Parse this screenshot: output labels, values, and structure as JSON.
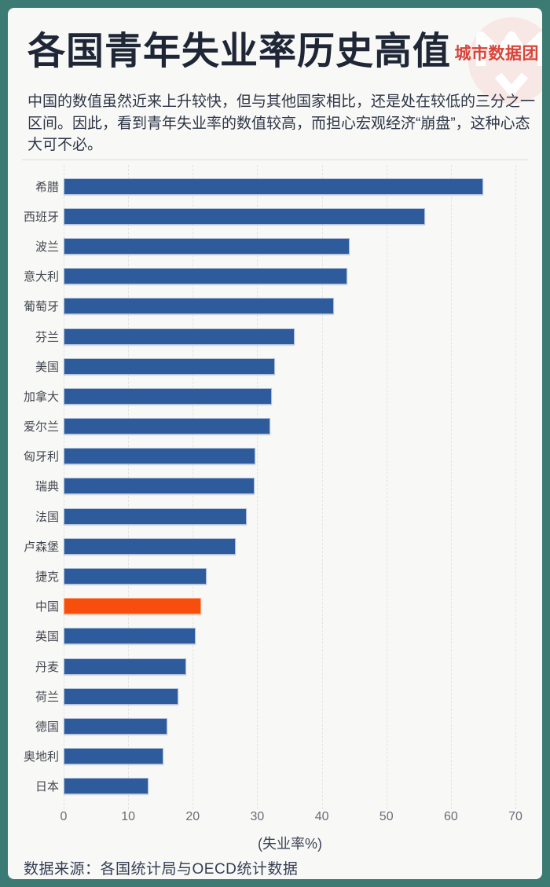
{
  "colors": {
    "frame_teal": "#3b7b73",
    "panel_bg": "#f8f8f6",
    "bar_blue": "#2d5b9b",
    "bar_orange": "#f84e0d",
    "logo_red": "#d8443a",
    "logo_pink": "#f7e8e6"
  },
  "header": {
    "title": "各国青年失业率历史高值",
    "logo_text": "城市数据团"
  },
  "intro": {
    "lines": [
      "中国的数值虽然近来上升较快，但与其他国家相比，还是处在较低的三分之一",
      "区间。因此，看到青年失业率的数值较高，而担心宏观经济“崩盘”，这种心态",
      "大可不必。"
    ]
  },
  "chart_data": {
    "type": "bar",
    "orientation": "horizontal",
    "title": "各国青年失业率历史高值",
    "categories": [
      "希腊",
      "西班牙",
      "波兰",
      "意大利",
      "葡萄牙",
      "芬兰",
      "美国",
      "加拿大",
      "爱尔兰",
      "匈牙利",
      "瑞典",
      "法国",
      "卢森堡",
      "捷克",
      "中国",
      "英国",
      "丹麦",
      "荷兰",
      "德国",
      "奥地利",
      "日本"
    ],
    "values": [
      65.0,
      56.0,
      44.3,
      44.0,
      41.9,
      35.8,
      32.8,
      32.3,
      32.0,
      29.7,
      29.6,
      28.3,
      26.7,
      22.2,
      21.3,
      20.4,
      19.0,
      17.8,
      16.1,
      15.5,
      13.2
    ],
    "highlight_category": "中国",
    "xlim": [
      0,
      70
    ],
    "x_ticks": [
      0,
      10,
      20,
      30,
      40,
      50,
      60,
      70
    ],
    "xlabel": "(失业率%)",
    "grid": "vertical-dashed",
    "legend": "none"
  },
  "footer": {
    "source": "数据来源：各国统计局与OECD统计数据"
  }
}
